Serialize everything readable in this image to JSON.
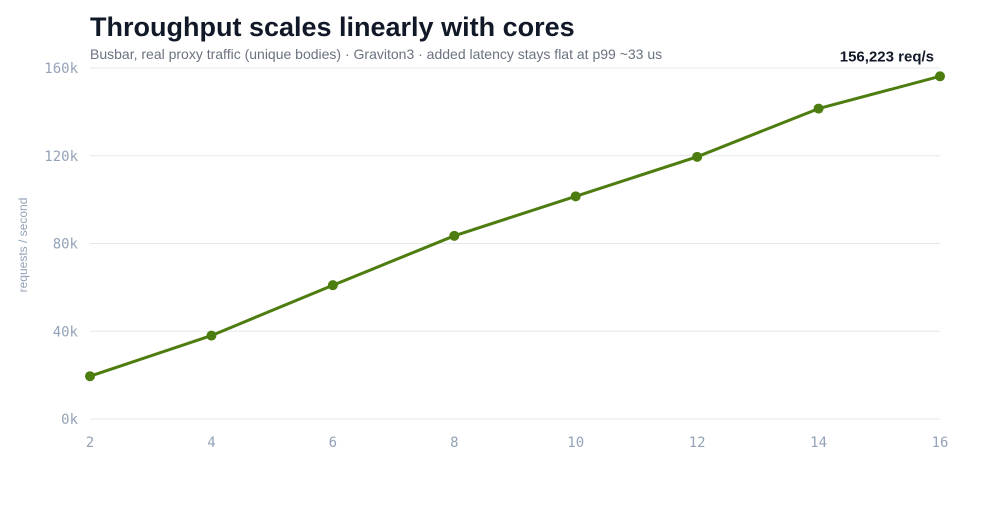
{
  "chart_data": {
    "type": "line",
    "title": "Throughput scales linearly with cores",
    "subtitle": "Busbar, real proxy traffic (unique bodies) · Graviton3 · added latency stays flat at p99 ~33 us",
    "xlabel": "",
    "ylabel": "requests / second",
    "x": [
      2,
      4,
      6,
      8,
      10,
      12,
      14,
      16
    ],
    "x_tick_labels": [
      "2",
      "4",
      "6",
      "8",
      "10",
      "12",
      "14",
      "16"
    ],
    "xlim": [
      2,
      16
    ],
    "y_ticks": [
      0,
      40000,
      80000,
      120000,
      160000
    ],
    "y_tick_labels": [
      "0k",
      "40k",
      "80k",
      "120k",
      "160k"
    ],
    "ylim": [
      0,
      160000
    ],
    "grid": true,
    "legend": "none",
    "series": [
      {
        "values": [
          19500,
          38000,
          61000,
          83500,
          101500,
          119500,
          141500,
          156223
        ],
        "color": "#4d7c0f"
      }
    ],
    "annotations": [
      {
        "text": "156,223 req/s",
        "x": 16,
        "y": 156223
      }
    ]
  }
}
